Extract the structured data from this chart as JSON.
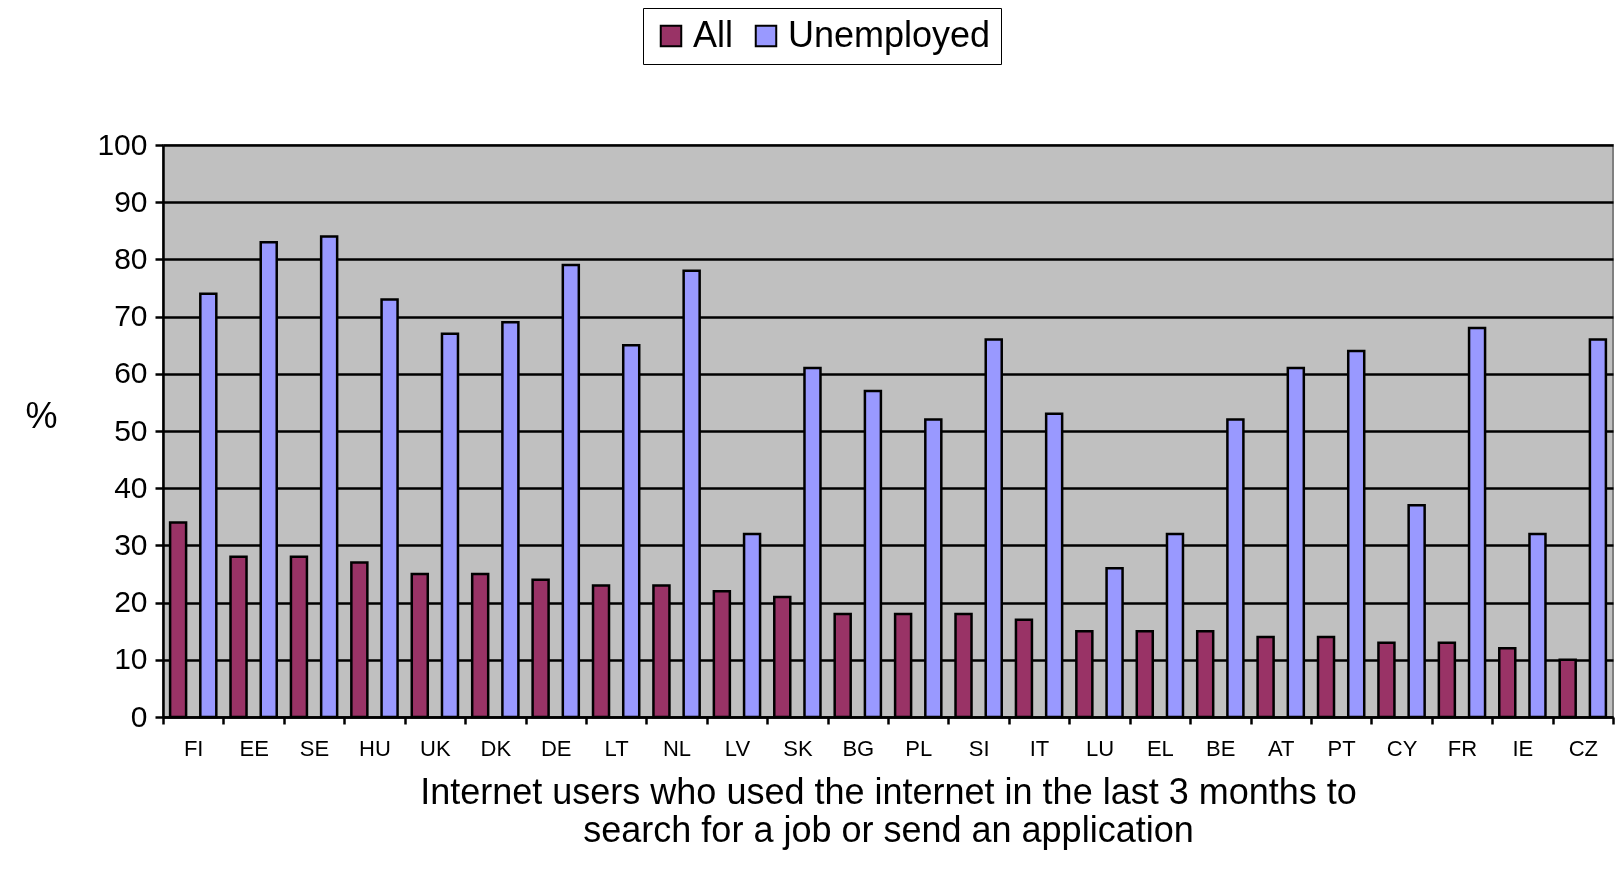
{
  "chart_data": {
    "type": "bar",
    "xlabel": "Internet users who used the internet in the last 3 months to\nsearch for a job or send an application",
    "ylabel": "%",
    "categories": [
      "FI",
      "EE",
      "SE",
      "HU",
      "UK",
      "DK",
      "DE",
      "LT",
      "NL",
      "LV",
      "SK",
      "BG",
      "PL",
      "SI",
      "IT",
      "LU",
      "EL",
      "BE",
      "AT",
      "PT",
      "CY",
      "FR",
      "IE",
      "CZ"
    ],
    "series": [
      {
        "name": "All",
        "color": "#993366",
        "values": [
          34,
          28,
          28,
          27,
          25,
          25,
          24,
          23,
          23,
          22,
          21,
          18,
          18,
          18,
          17,
          15,
          15,
          15,
          14,
          14,
          13,
          13,
          12,
          10
        ]
      },
      {
        "name": "Unemployed",
        "color": "#9999ff",
        "values": [
          74,
          83,
          84,
          73,
          67,
          69,
          79,
          65,
          78,
          32,
          61,
          57,
          52,
          66,
          53,
          26,
          32,
          52,
          61,
          64,
          37,
          68,
          32,
          66
        ]
      }
    ],
    "ylim": [
      0,
      100
    ],
    "yticks": [
      0,
      10,
      20,
      30,
      40,
      50,
      60,
      70,
      80,
      90,
      100
    ],
    "grid": "y",
    "legend": "top"
  }
}
